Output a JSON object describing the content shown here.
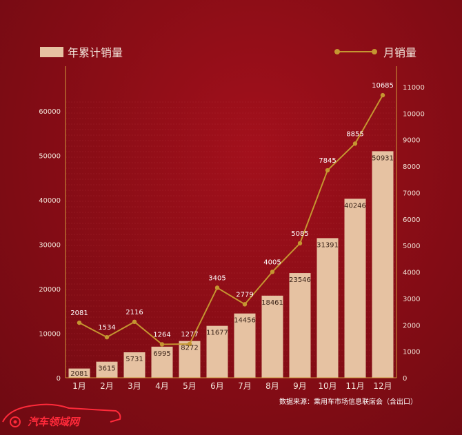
{
  "legend": {
    "bar_label": "年累计销量",
    "line_label": "月销量"
  },
  "source": "数据来源：乘用车市场信息联席会（含出口）",
  "logo": {
    "text": "汽车领域网"
  },
  "colors": {
    "bar": "#e6c2a2",
    "line": "#c59631",
    "axis": "#cf9a3a",
    "grid": "#b5363e"
  },
  "chart_data": {
    "type": "bar+line",
    "categories": [
      "1月",
      "2月",
      "3月",
      "4月",
      "5月",
      "6月",
      "7月",
      "8月",
      "9月",
      "10月",
      "11月",
      "12月"
    ],
    "series": [
      {
        "name": "年累计销量",
        "type": "bar",
        "axis": "left",
        "values": [
          2081,
          3615,
          5731,
          6995,
          8272,
          11677,
          14456,
          18461,
          23546,
          31391,
          40246,
          50931
        ]
      },
      {
        "name": "月销量",
        "type": "line",
        "axis": "right",
        "values": [
          2081,
          1534,
          2116,
          1264,
          1277,
          3405,
          2779,
          4005,
          5085,
          7845,
          8855,
          10685
        ]
      }
    ],
    "left_axis": {
      "range": [
        0,
        64000
      ],
      "ticks": [
        "0",
        "10000",
        "20000",
        "30000",
        "40000",
        "50000",
        "60000"
      ]
    },
    "right_axis": {
      "range": [
        0,
        11000
      ],
      "ticks": [
        "0",
        "1000",
        "2000",
        "3000",
        "4000",
        "5000",
        "6000",
        "7000",
        "8000",
        "9000",
        "10000",
        "11000"
      ]
    },
    "grid": true,
    "legend_position": "top"
  }
}
